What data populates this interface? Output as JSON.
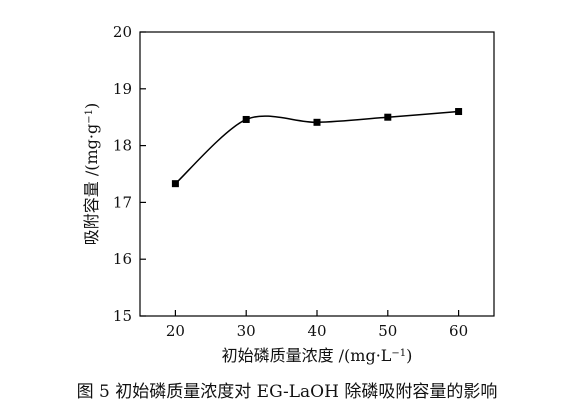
{
  "chart_data": {
    "type": "line",
    "title": "",
    "xlabel": {
      "main": "初始磷质量浓度 /(mg·L",
      "sup": "−1",
      "close": ")"
    },
    "ylabel": {
      "main": "吸附容量 /(mg·g",
      "sup": "−1",
      "close": ")"
    },
    "x": [
      20,
      30,
      40,
      50,
      60
    ],
    "series": [
      {
        "name": "",
        "values": [
          17.33,
          18.46,
          18.41,
          18.5,
          18.6
        ]
      }
    ],
    "xlim": [
      15,
      65
    ],
    "ylim": [
      15,
      20
    ],
    "xticks": [
      20,
      30,
      40,
      50,
      60
    ],
    "yticks": [
      15,
      16,
      17,
      18,
      19,
      20
    ],
    "grid": false,
    "legend": "none",
    "smooth": true,
    "marker": "square",
    "line_color": "#000000"
  },
  "caption": "图 5  初始磷质量浓度对 EG-LaOH 除磷吸附容量的影响"
}
